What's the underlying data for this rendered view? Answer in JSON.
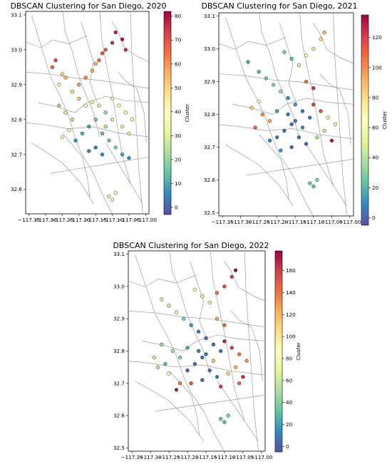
{
  "chart_data": [
    {
      "type": "scatter",
      "title": "DBSCAN Clustering for San Diego, 2020",
      "xlabel": "",
      "ylabel": "",
      "xlim": [
        -117.36,
        -116.99
      ],
      "ylim": [
        32.53,
        33.11
      ],
      "x_ticks": [
        -117.35,
        -117.3,
        -117.25,
        -117.2,
        -117.15,
        -117.1,
        -117.05,
        -117.0
      ],
      "x_tick_labels": [
        "−117.35",
        "−117.30",
        "−117.25",
        "−117.20",
        "−117.15",
        "−117.10",
        "−117.05",
        "−117.00"
      ],
      "y_ticks": [
        32.6,
        32.7,
        32.8,
        32.9,
        33.0,
        33.1
      ],
      "y_tick_labels": [
        "32.6",
        "32.7",
        "32.8",
        "32.9",
        "33.0",
        "33.1"
      ],
      "colorbar": {
        "label": "Cluster",
        "min": -3,
        "max": 82,
        "ticks": [
          0,
          10,
          20,
          30,
          40,
          50,
          60,
          70,
          80
        ]
      },
      "background": "street network (gray lines)",
      "points": [
        [
          -117.25,
          32.93,
          50
        ],
        [
          -117.24,
          32.92,
          55
        ],
        [
          -117.26,
          32.9,
          45
        ],
        [
          -117.22,
          32.88,
          48
        ],
        [
          -117.2,
          32.86,
          52
        ],
        [
          -117.18,
          32.84,
          40
        ],
        [
          -117.16,
          32.85,
          35
        ],
        [
          -117.14,
          32.84,
          30
        ],
        [
          -117.12,
          32.82,
          20
        ],
        [
          -117.15,
          32.8,
          15
        ],
        [
          -117.17,
          32.78,
          10
        ],
        [
          -117.19,
          32.76,
          12
        ],
        [
          -117.21,
          32.74,
          8
        ],
        [
          -117.13,
          32.76,
          14
        ],
        [
          -117.11,
          32.74,
          16
        ],
        [
          -117.09,
          32.72,
          18
        ],
        [
          -117.15,
          32.72,
          5
        ],
        [
          -117.17,
          32.71,
          3
        ],
        [
          -117.13,
          32.7,
          6
        ],
        [
          -117.22,
          32.8,
          25
        ],
        [
          -117.24,
          32.82,
          28
        ],
        [
          -117.26,
          32.84,
          22
        ],
        [
          -117.2,
          32.9,
          60
        ],
        [
          -117.18,
          32.92,
          62
        ],
        [
          -117.16,
          32.94,
          58
        ],
        [
          -117.14,
          32.97,
          65
        ],
        [
          -117.12,
          33.0,
          70
        ],
        [
          -117.1,
          33.02,
          75
        ],
        [
          -117.09,
          33.05,
          78
        ],
        [
          -117.13,
          32.99,
          68
        ],
        [
          -117.15,
          32.96,
          55
        ],
        [
          -117.27,
          32.97,
          72
        ],
        [
          -117.28,
          32.95,
          66
        ],
        [
          -117.1,
          32.86,
          42
        ],
        [
          -117.08,
          32.84,
          38
        ],
        [
          -117.06,
          32.82,
          36
        ],
        [
          -117.04,
          32.8,
          34
        ],
        [
          -117.07,
          32.78,
          33
        ],
        [
          -117.05,
          32.76,
          31
        ],
        [
          -117.1,
          32.8,
          29
        ],
        [
          -117.12,
          32.78,
          26
        ],
        [
          -117.07,
          32.7,
          9
        ],
        [
          -117.05,
          32.69,
          7
        ],
        [
          -117.1,
          32.57,
          40
        ],
        [
          -117.11,
          32.58,
          45
        ],
        [
          -117.09,
          32.59,
          42
        ],
        [
          -117.07,
          33.03,
          80
        ],
        [
          -117.06,
          33.0,
          76
        ],
        [
          -117.23,
          32.77,
          35
        ],
        [
          -117.25,
          32.75,
          38
        ]
      ]
    },
    {
      "type": "scatter",
      "title": "DBSCAN Clustering for San Diego, 2021",
      "xlabel": "",
      "ylabel": "",
      "xlim": [
        -117.36,
        -116.99
      ],
      "ylim": [
        32.49,
        33.11
      ],
      "x_ticks": [
        -117.35,
        -117.3,
        -117.25,
        -117.2,
        -117.15,
        -117.1,
        -117.05,
        -117.0
      ],
      "x_tick_labels": [
        "−117.35",
        "−117.30",
        "−117.25",
        "−117.20",
        "−117.15",
        "−117.10",
        "−117.05",
        "−117.00"
      ],
      "y_ticks": [
        32.5,
        32.6,
        32.7,
        32.8,
        32.9,
        33.0,
        33.1
      ],
      "y_tick_labels": [
        "32.5",
        "32.6",
        "32.7",
        "32.8",
        "32.9",
        "33.0",
        "33.1"
      ],
      "colorbar": {
        "label": "Cluster",
        "min": -5,
        "max": 135,
        "ticks": [
          0,
          20,
          40,
          60,
          80,
          100,
          120
        ]
      },
      "background": "street network (gray lines)",
      "points": [
        [
          -117.25,
          32.93,
          20
        ],
        [
          -117.23,
          32.91,
          25
        ],
        [
          -117.21,
          32.89,
          30
        ],
        [
          -117.19,
          32.87,
          35
        ],
        [
          -117.17,
          32.85,
          10
        ],
        [
          -117.15,
          32.83,
          15
        ],
        [
          -117.13,
          32.81,
          5
        ],
        [
          -117.11,
          32.79,
          8
        ],
        [
          -117.16,
          32.77,
          2
        ],
        [
          -117.18,
          32.75,
          4
        ],
        [
          -117.2,
          32.73,
          6
        ],
        [
          -117.14,
          32.73,
          3
        ],
        [
          -117.12,
          32.71,
          1
        ],
        [
          -117.16,
          32.7,
          2
        ],
        [
          -117.19,
          32.69,
          12
        ],
        [
          -117.22,
          32.78,
          95
        ],
        [
          -117.24,
          32.8,
          100
        ],
        [
          -117.26,
          32.76,
          110
        ],
        [
          -117.27,
          32.82,
          85
        ],
        [
          -117.25,
          32.84,
          70
        ],
        [
          -117.1,
          32.83,
          120
        ],
        [
          -117.08,
          32.81,
          115
        ],
        [
          -117.06,
          32.79,
          60
        ],
        [
          -117.04,
          32.77,
          55
        ],
        [
          -117.07,
          32.75,
          45
        ],
        [
          -117.09,
          32.73,
          40
        ],
        [
          -117.05,
          32.72,
          130
        ],
        [
          -117.14,
          32.95,
          50
        ],
        [
          -117.12,
          32.98,
          65
        ],
        [
          -117.1,
          33.0,
          75
        ],
        [
          -117.08,
          33.03,
          80
        ],
        [
          -117.07,
          33.05,
          90
        ],
        [
          -117.16,
          32.97,
          22
        ],
        [
          -117.18,
          32.99,
          28
        ],
        [
          -117.28,
          32.96,
          18
        ],
        [
          -117.12,
          32.9,
          105
        ],
        [
          -117.1,
          32.88,
          125
        ],
        [
          -117.2,
          32.81,
          14
        ],
        [
          -117.22,
          32.72,
          9
        ],
        [
          -117.11,
          32.59,
          26
        ],
        [
          -117.1,
          32.58,
          24
        ],
        [
          -117.09,
          32.6,
          30
        ],
        [
          -117.15,
          32.78,
          3
        ],
        [
          -117.17,
          32.8,
          7
        ],
        [
          -117.13,
          32.76,
          11
        ]
      ]
    },
    {
      "type": "scatter",
      "title": "DBSCAN Clustering for San Diego, 2022",
      "xlabel": "",
      "ylabel": "",
      "xlim": [
        -117.36,
        -116.99
      ],
      "ylim": [
        32.49,
        33.11
      ],
      "x_ticks": [
        -117.35,
        -117.3,
        -117.25,
        -117.2,
        -117.15,
        -117.1,
        -117.05,
        -117.0
      ],
      "x_tick_labels": [
        "−117.35",
        "−117.30",
        "−117.25",
        "−117.20",
        "−117.15",
        "−117.10",
        "−117.05",
        "−117.00"
      ],
      "y_ticks": [
        32.5,
        32.6,
        32.7,
        32.8,
        32.9,
        33.0,
        33.1
      ],
      "y_tick_labels": [
        "32.5",
        "32.6",
        "32.7",
        "32.8",
        "32.9",
        "33.0",
        "33.1"
      ],
      "colorbar": {
        "label": "Cluster",
        "min": -5,
        "max": 178,
        "ticks": [
          0,
          20,
          40,
          60,
          80,
          100,
          120,
          140,
          160
        ]
      },
      "background": "street network (gray lines)",
      "points": [
        [
          -117.25,
          32.94,
          60
        ],
        [
          -117.23,
          32.92,
          75
        ],
        [
          -117.21,
          32.9,
          40
        ],
        [
          -117.19,
          32.88,
          20
        ],
        [
          -117.17,
          32.86,
          10
        ],
        [
          -117.15,
          32.84,
          5
        ],
        [
          -117.13,
          32.82,
          3
        ],
        [
          -117.11,
          32.8,
          8
        ],
        [
          -117.16,
          32.78,
          2
        ],
        [
          -117.18,
          32.76,
          4
        ],
        [
          -117.2,
          32.74,
          1
        ],
        [
          -117.14,
          32.74,
          6
        ],
        [
          -117.12,
          32.72,
          12
        ],
        [
          -117.16,
          32.71,
          3
        ],
        [
          -117.19,
          32.7,
          150
        ],
        [
          -117.22,
          32.78,
          40
        ],
        [
          -117.24,
          32.8,
          50
        ],
        [
          -117.26,
          32.76,
          30
        ],
        [
          -117.27,
          32.82,
          45
        ],
        [
          -117.25,
          32.73,
          90
        ],
        [
          -117.1,
          32.83,
          170
        ],
        [
          -117.08,
          32.81,
          160
        ],
        [
          -117.06,
          32.79,
          140
        ],
        [
          -117.04,
          32.77,
          130
        ],
        [
          -117.07,
          32.75,
          120
        ],
        [
          -117.09,
          32.73,
          110
        ],
        [
          -117.05,
          32.72,
          165
        ],
        [
          -117.14,
          32.95,
          100
        ],
        [
          -117.12,
          32.98,
          140
        ],
        [
          -117.1,
          33.0,
          155
        ],
        [
          -117.08,
          33.03,
          160
        ],
        [
          -117.07,
          33.05,
          175
        ],
        [
          -117.16,
          32.97,
          70
        ],
        [
          -117.18,
          32.99,
          85
        ],
        [
          -117.27,
          32.96,
          65
        ],
        [
          -117.12,
          32.9,
          125
        ],
        [
          -117.1,
          32.88,
          145
        ],
        [
          -117.2,
          32.81,
          25
        ],
        [
          -117.22,
          32.7,
          135
        ],
        [
          -117.11,
          32.59,
          35
        ],
        [
          -117.1,
          32.58,
          30
        ],
        [
          -117.09,
          32.6,
          40
        ],
        [
          -117.15,
          32.79,
          7
        ],
        [
          -117.17,
          32.8,
          9
        ],
        [
          -117.13,
          32.77,
          115
        ],
        [
          -117.28,
          32.75,
          55
        ],
        [
          -117.29,
          32.78,
          62
        ],
        [
          -117.23,
          32.68,
          168
        ],
        [
          -117.11,
          32.69,
          158
        ],
        [
          -117.06,
          32.7,
          145
        ]
      ]
    }
  ]
}
